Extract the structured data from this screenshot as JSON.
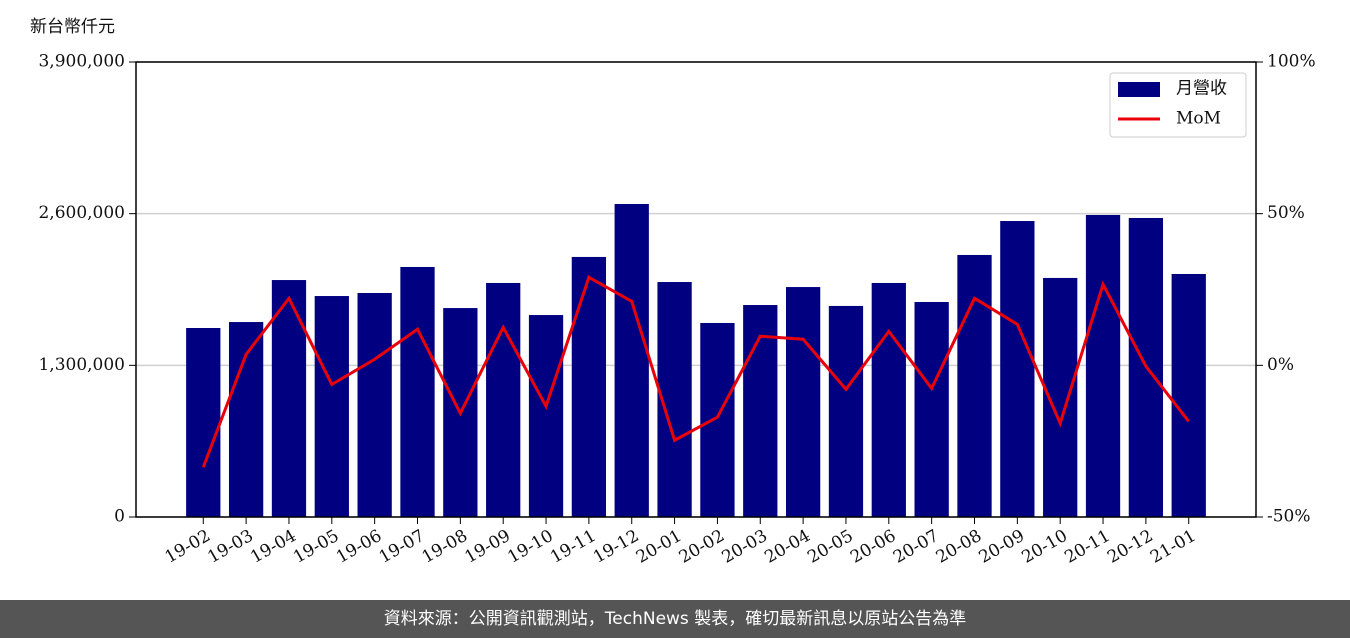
{
  "chart_data": {
    "type": "bar",
    "ylabel": "新台幣仟元",
    "categories": [
      "19-02",
      "19-03",
      "19-04",
      "19-05",
      "19-06",
      "19-07",
      "19-08",
      "19-09",
      "19-10",
      "19-11",
      "19-12",
      "20-01",
      "20-02",
      "20-03",
      "20-04",
      "20-05",
      "20-06",
      "20-07",
      "20-08",
      "20-09",
      "20-10",
      "20-11",
      "20-12",
      "21-01"
    ],
    "series": [
      {
        "name": "月營收",
        "type": "bar",
        "color": "#000080",
        "values": [
          1620000,
          1671000,
          2031000,
          1894000,
          1920000,
          2143000,
          1791000,
          2006000,
          1731000,
          2229000,
          2683000,
          2014000,
          1663000,
          1817000,
          1971000,
          1809000,
          2006000,
          1843000,
          2246000,
          2537000,
          2049000,
          2589000,
          2563000,
          2083000
        ]
      },
      {
        "name": "MoM",
        "type": "line",
        "axis": "y2",
        "color": "#e8000b",
        "values": [
          -33.6,
          3.6,
          22.1,
          -6.3,
          2.0,
          11.9,
          -15.8,
          12.5,
          -13.5,
          29.0,
          21.1,
          -24.7,
          -17.1,
          9.6,
          8.6,
          -7.9,
          11.2,
          -7.6,
          22.1,
          13.5,
          -19.1,
          26.7,
          -0.3,
          -18.5
        ]
      }
    ],
    "ylim": [
      0,
      3900000
    ],
    "yticks": [
      {
        "value": 0,
        "label": "0"
      },
      {
        "value": 1300000,
        "label": "1,300,000"
      },
      {
        "value": 2600000,
        "label": "2,600,000"
      },
      {
        "value": 3900000,
        "label": "3,900,000"
      }
    ],
    "y2lim": [
      -50,
      100
    ],
    "y2ticks": [
      {
        "value": -50,
        "label": "-50%"
      },
      {
        "value": 0,
        "label": "0%"
      },
      {
        "value": 50,
        "label": "50%"
      },
      {
        "value": 100,
        "label": "100%"
      }
    ],
    "grid": true,
    "legend": "upper right"
  },
  "footer": "資料來源：公開資訊觀測站，TechNews 製表，確切最新訊息以原站公告為準"
}
